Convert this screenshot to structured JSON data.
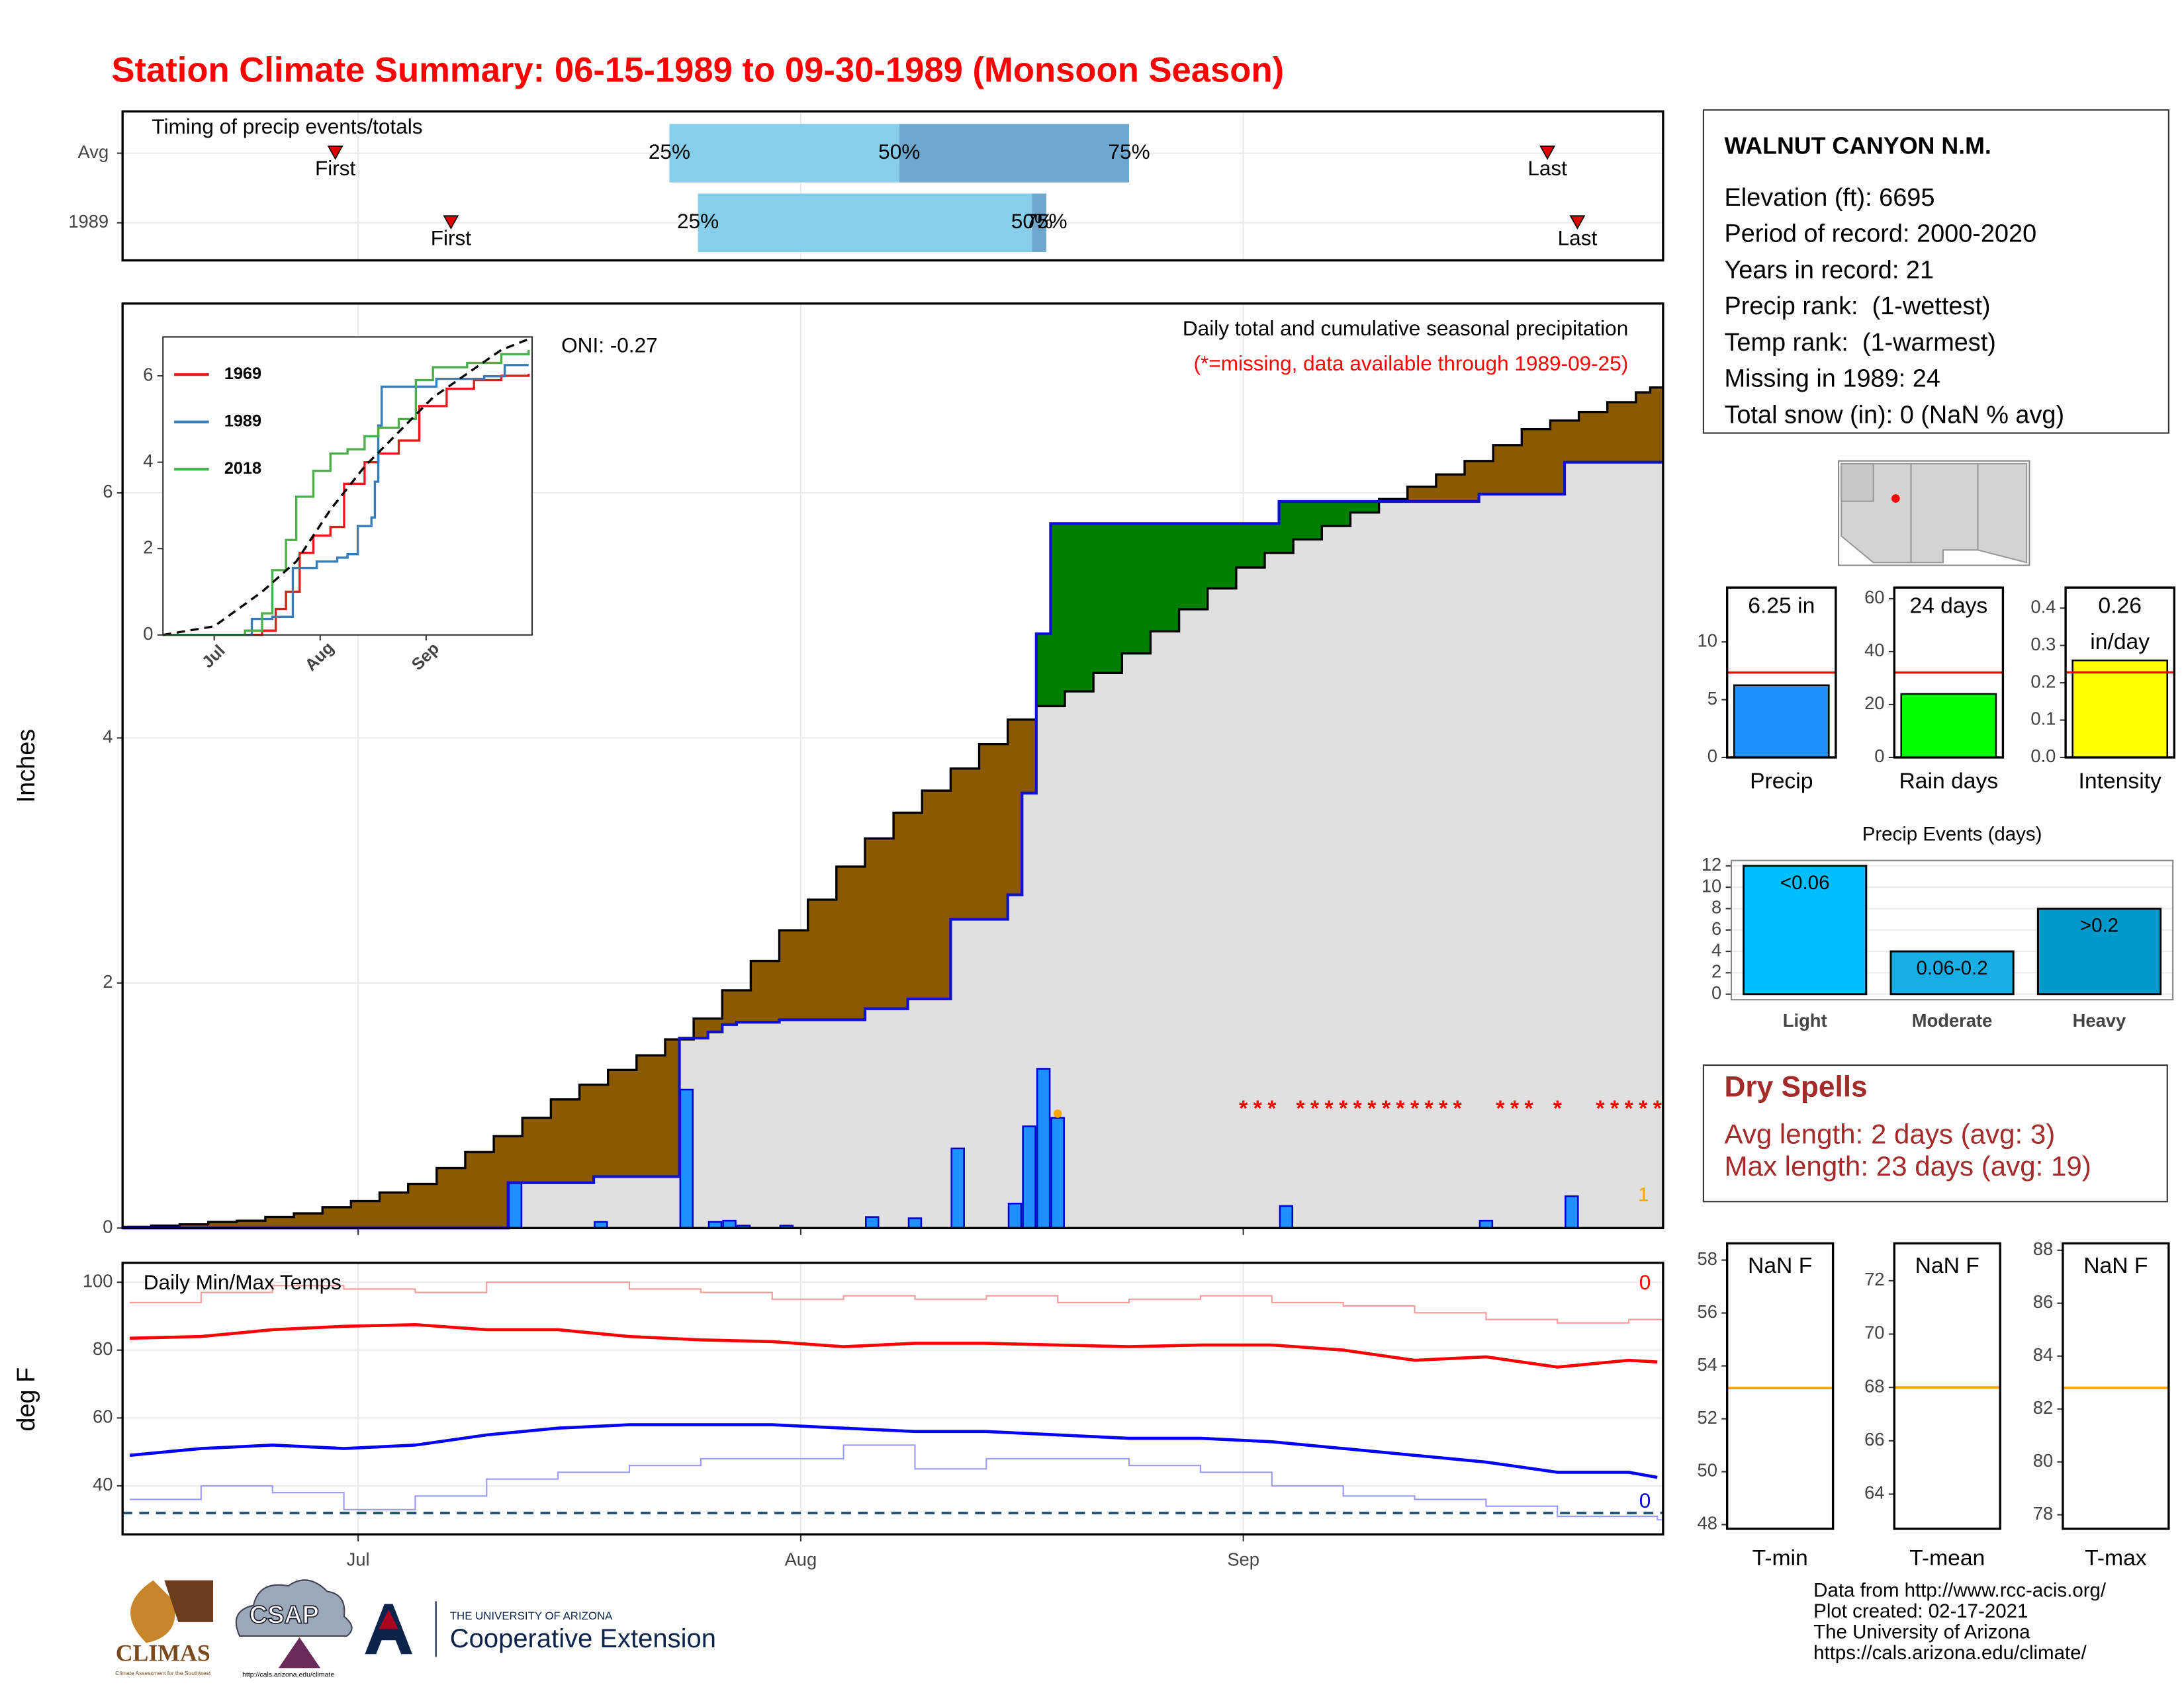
{
  "title": "Station Climate Summary: 06-15-1989 to 09-30-1989 (Monsoon Season)",
  "station": {
    "name": "WALNUT CANYON N.M.",
    "lines": [
      "Elevation (ft): 6695",
      "Period of record: 2000-2020",
      "Years in record: 21",
      "Precip rank:  (1-wettest)",
      "Temp rank:  (1-warmest)",
      "Missing in 1989: 24",
      "Total snow (in): 0 (NaN % avg)"
    ]
  },
  "dry_spells": {
    "title": "Dry Spells",
    "lines": [
      "Avg length: 2 days (avg: 3)",
      "Max length: 23 days (avg: 19)"
    ]
  },
  "credits": [
    "Data from http://www.rcc-acis.org/",
    "Plot created: 02-17-2021",
    "The University of Arizona",
    "https://cals.arizona.edu/climate/"
  ],
  "logos": {
    "climas": "CLIMAS",
    "climas_sub": "Climate Assessment for the Southwest",
    "csap": "CSAP",
    "csap_url": "http://cals.arizona.edu/climate",
    "ua": "THE UNIVERSITY OF ARIZONA",
    "coop": "Cooperative Extension"
  },
  "chart_data": [
    {
      "type": "timing",
      "title": "Timing of precip events/totals",
      "categories": [
        "Avg",
        "1989"
      ],
      "xlim": [
        -0.5,
        107.4
      ],
      "xticks": [
        {
          "value": 16,
          "label": "Jul"
        },
        {
          "value": 47,
          "label": "Aug"
        },
        {
          "value": 78,
          "label": "Sep"
        }
      ],
      "labels": {
        "first": "First",
        "q25": "25%",
        "q50": "50%",
        "q75": "75%",
        "last": "Last"
      },
      "first": [
        14.4,
        22.5
      ],
      "q25": [
        37.8,
        39.8
      ],
      "q50": [
        53.9,
        63.2
      ],
      "q75": [
        70,
        64.2
      ],
      "last": [
        99.3,
        101.4
      ],
      "colors": {
        "early": "#87ceeb",
        "late": "#6fa8cf",
        "marker": "#e00000"
      },
      "grid": true
    },
    {
      "type": "cumulative_precip",
      "title": "Daily total and cumulative seasonal precipitation",
      "subtitle": "(*=missing, data available through 1989-09-25)",
      "oni": "ONI: -0.27",
      "ylabel": "Inches",
      "xlim": [
        -0.5,
        107.4
      ],
      "xticks": [
        {
          "value": 16,
          "label": "Jul"
        },
        {
          "value": 47,
          "label": "Aug"
        },
        {
          "value": 78,
          "label": "Sep"
        }
      ],
      "ylim": [
        0,
        7.545
      ],
      "yticks": [
        0,
        2,
        4,
        6
      ],
      "grid": true,
      "average": {
        "color": "#000000",
        "x": [
          0,
          2,
          4,
          6,
          8,
          10,
          12,
          14,
          16,
          18,
          20,
          22,
          24,
          26,
          28,
          30,
          32,
          34,
          36,
          38,
          40,
          42,
          44,
          46,
          48,
          50,
          52,
          54,
          56,
          58,
          60,
          62,
          64,
          66,
          68,
          70,
          72,
          74,
          76,
          78,
          80,
          82,
          84,
          86,
          88,
          90,
          92,
          94,
          96,
          98,
          100,
          102,
          104,
          106,
          107
        ],
        "values": [
          0.01,
          0.02,
          0.03,
          0.05,
          0.06,
          0.09,
          0.12,
          0.17,
          0.22,
          0.29,
          0.36,
          0.49,
          0.62,
          0.75,
          0.9,
          1.05,
          1.17,
          1.29,
          1.41,
          1.54,
          1.71,
          1.94,
          2.18,
          2.43,
          2.68,
          2.95,
          3.18,
          3.39,
          3.57,
          3.75,
          3.95,
          4.15,
          4.26,
          4.38,
          4.53,
          4.69,
          4.87,
          5.05,
          5.22,
          5.39,
          5.51,
          5.62,
          5.73,
          5.84,
          5.95,
          6.05,
          6.15,
          6.26,
          6.39,
          6.52,
          6.59,
          6.66,
          6.74,
          6.82,
          6.86
        ]
      },
      "observed": {
        "color": "#1010d0",
        "x": [
          0,
          27,
          33,
          39,
          41,
          42,
          43,
          46,
          52,
          55,
          58,
          62,
          63,
          64,
          65,
          81,
          95,
          101,
          107
        ],
        "values": [
          0,
          0.37,
          0.42,
          1.55,
          1.6,
          1.66,
          1.68,
          1.7,
          1.79,
          1.87,
          2.52,
          2.72,
          3.55,
          4.85,
          5.75,
          5.93,
          5.99,
          6.25,
          6.25
        ]
      },
      "daily": {
        "color": "#1e90ff",
        "x": [
          27,
          33,
          39,
          41,
          42,
          43,
          46,
          52,
          55,
          58,
          62,
          63,
          64,
          65,
          81,
          95,
          101
        ],
        "values": [
          0.37,
          0.05,
          1.13,
          0.05,
          0.06,
          0.02,
          0.02,
          0.09,
          0.08,
          0.65,
          0.2,
          0.83,
          1.3,
          0.9,
          0.18,
          0.06,
          0.26
        ]
      },
      "fills": {
        "below": "#e0e0e0",
        "deficit": "#8b5a00",
        "surplus": "#008000"
      },
      "missing": {
        "marker": "*",
        "color": "#ff0000",
        "x": [
          78,
          79,
          80,
          82,
          83,
          84,
          85,
          86,
          87,
          88,
          89,
          90,
          91,
          92,
          93,
          96,
          97,
          98,
          100,
          103,
          104,
          105,
          106,
          107
        ]
      },
      "flag": {
        "x": 65,
        "value": 0.9,
        "color": "#ffa500",
        "label": "1"
      }
    },
    {
      "type": "line",
      "xlim": [
        1,
        109
      ],
      "xticks": [
        {
          "value": 16,
          "label": "Jul"
        },
        {
          "value": 47,
          "label": "Aug"
        },
        {
          "value": 78,
          "label": "Sep"
        }
      ],
      "ylim": [
        0,
        6.9
      ],
      "yticks": [
        0,
        2,
        4,
        6
      ],
      "legend": "top-left",
      "series": [
        {
          "name": "1969",
          "color": "#e41a1c",
          "x": [
            1,
            30,
            34,
            37,
            41,
            45,
            50,
            54,
            60,
            64,
            70,
            76,
            84,
            92,
            100,
            108
          ],
          "values": [
            0,
            0.1,
            0.6,
            1.0,
            1.9,
            2.3,
            2.5,
            3.5,
            4.0,
            4.2,
            4.5,
            5.3,
            5.7,
            5.9,
            6.0,
            6.05
          ]
        },
        {
          "name": "1989",
          "color": "#377eb8",
          "x": [
            1,
            27,
            33,
            39,
            46,
            52,
            55,
            58,
            62,
            63,
            64,
            65,
            81,
            95,
            101,
            108
          ],
          "values": [
            0,
            0.37,
            0.42,
            1.55,
            1.7,
            1.79,
            1.87,
            2.52,
            2.72,
            3.55,
            4.85,
            5.75,
            5.93,
            5.99,
            6.25,
            6.25
          ]
        },
        {
          "name": "2018",
          "color": "#4daf4a",
          "x": [
            1,
            25,
            30,
            33,
            37,
            40,
            45,
            50,
            55,
            60,
            64,
            70,
            75,
            80,
            90,
            100,
            108
          ],
          "values": [
            0,
            0.1,
            0.5,
            1.5,
            2.2,
            3.2,
            3.8,
            4.2,
            4.3,
            4.6,
            4.8,
            5.0,
            5.9,
            6.2,
            6.3,
            6.5,
            6.6
          ]
        }
      ],
      "average": {
        "color": "#000000",
        "x": [
          1,
          16,
          30,
          40,
          50,
          60,
          70,
          80,
          90,
          100,
          108
        ],
        "values": [
          0,
          0.2,
          1.0,
          1.7,
          2.9,
          3.9,
          4.7,
          5.5,
          6.05,
          6.6,
          6.85
        ]
      }
    },
    {
      "type": "temperature",
      "title": "Daily Min/Max Temps",
      "ylabel": "deg F",
      "xlim": [
        -0.5,
        107.4
      ],
      "xticks": [
        {
          "value": 16,
          "label": "Jul"
        },
        {
          "value": 47,
          "label": "Aug"
        },
        {
          "value": 78,
          "label": "Sep"
        }
      ],
      "ylim": [
        25.7,
        105.7
      ],
      "yticks": [
        40,
        60,
        80,
        100
      ],
      "grid": true,
      "x": [
        0,
        5,
        10,
        15,
        20,
        25,
        30,
        35,
        40,
        45,
        50,
        55,
        60,
        65,
        70,
        75,
        80,
        85,
        90,
        95,
        100,
        105,
        107
      ],
      "series": [
        {
          "color": "#ff9999",
          "step": true,
          "values": [
            94,
            97,
            99,
            98,
            97,
            100,
            100,
            98,
            97,
            95,
            96,
            95,
            96,
            94,
            95,
            96,
            94,
            93,
            91,
            89,
            88,
            89,
            89
          ]
        },
        {
          "color": "#ff0000",
          "step": false,
          "values": [
            83.5,
            84,
            86,
            87,
            87.5,
            86,
            86,
            84,
            83,
            82.5,
            81,
            82,
            82,
            81.5,
            81,
            81.5,
            81.5,
            80,
            77,
            78,
            75,
            77,
            76.5
          ]
        },
        {
          "color": "#0000ff",
          "step": false,
          "values": [
            49,
            51,
            52,
            51,
            52,
            55,
            57,
            58,
            58,
            58,
            57,
            56,
            56,
            55,
            54,
            54,
            53,
            51,
            49,
            47,
            44,
            44,
            42.5
          ]
        },
        {
          "color": "#9999ff",
          "step": true,
          "values": [
            36,
            40,
            38,
            33,
            37,
            42,
            44,
            46,
            48,
            48,
            52,
            45,
            48,
            48,
            46,
            44,
            40,
            37,
            36,
            34,
            31,
            31,
            30
          ]
        }
      ],
      "freeze": {
        "value": 32,
        "color": "#1f4e79"
      },
      "count_labels": {
        "hot": "0",
        "cold": "0"
      }
    },
    {
      "type": "single_bar",
      "category": "Precip",
      "value": 6.25,
      "value_label": [
        "6.25 in"
      ],
      "average": 7.35,
      "color": "#1e90ff",
      "ylim": [
        0,
        14.7
      ],
      "yticks": [
        0,
        5,
        10
      ]
    },
    {
      "type": "single_bar",
      "category": "Rain days",
      "value": 24,
      "value_label": [
        "24 days"
      ],
      "average": 32.1,
      "color": "#00ff00",
      "ylim": [
        0,
        64.2
      ],
      "yticks": [
        0,
        20,
        40,
        60
      ]
    },
    {
      "type": "single_bar",
      "category": "Intensity",
      "value": 0.26,
      "value_label": [
        "0.26",
        "in/day"
      ],
      "average": 0.228,
      "color": "#ffff00",
      "ylim": [
        0,
        0.455
      ],
      "yticks": [
        {
          "value": 0,
          "label": "0.0"
        },
        {
          "value": 0.1,
          "label": "0.1"
        },
        {
          "value": 0.2,
          "label": "0.2"
        },
        {
          "value": 0.3,
          "label": "0.3"
        },
        {
          "value": 0.4,
          "label": "0.4"
        }
      ]
    },
    {
      "type": "bar",
      "title": "Precip Events (days)",
      "categories": [
        "Light",
        "Moderate",
        "Heavy"
      ],
      "values": [
        12,
        4,
        8
      ],
      "bar_labels": [
        "<0.06",
        "0.06-0.2",
        ">0.2"
      ],
      "colors": [
        "#00bfff",
        "#1aaee6",
        "#0099cc"
      ],
      "ylim": [
        0,
        12.5
      ],
      "yticks": [
        0,
        2,
        4,
        6,
        8,
        10,
        12
      ],
      "grid": true
    },
    {
      "type": "temp_box",
      "category": "T-min",
      "value": null,
      "value_label": "NaN F",
      "average": 53.16,
      "color": "#ffa500",
      "ylim": [
        47.84,
        58.63
      ],
      "yticks": [
        48,
        50,
        52,
        54,
        56,
        58
      ]
    },
    {
      "type": "temp_box",
      "category": "T-mean",
      "value": null,
      "value_label": "NaN F",
      "average": 68,
      "color": "#ffa500",
      "ylim": [
        62.7,
        73.4
      ],
      "yticks": [
        64,
        66,
        68,
        70,
        72
      ]
    },
    {
      "type": "temp_box",
      "category": "T-max",
      "value": null,
      "value_label": "NaN F",
      "average": 82.8,
      "color": "#ffa500",
      "ylim": [
        77.47,
        88.26
      ],
      "yticks": [
        78,
        80,
        82,
        84,
        86,
        88
      ]
    }
  ]
}
